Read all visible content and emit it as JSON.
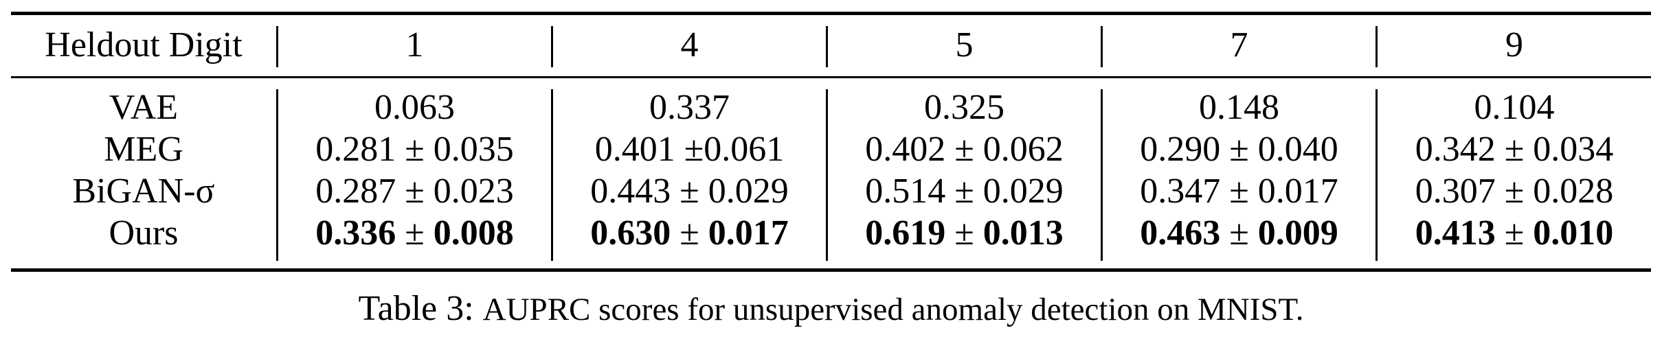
{
  "table": {
    "header": [
      "Heldout Digit",
      "1",
      "4",
      "5",
      "7",
      "9"
    ],
    "rows": [
      {
        "method": "VAE",
        "cells": [
          {
            "mean": "0.063",
            "pm": "",
            "std": "",
            "bold": false
          },
          {
            "mean": "0.337",
            "pm": "",
            "std": "",
            "bold": false
          },
          {
            "mean": "0.325",
            "pm": "",
            "std": "",
            "bold": false
          },
          {
            "mean": "0.148",
            "pm": "",
            "std": "",
            "bold": false
          },
          {
            "mean": "0.104",
            "pm": "",
            "std": "",
            "bold": false
          }
        ]
      },
      {
        "method": "MEG",
        "cells": [
          {
            "mean": "0.281",
            "pm": " ± ",
            "std": "0.035",
            "bold": false
          },
          {
            "mean": "0.401",
            "pm": " ±",
            "std": "0.061",
            "bold": false
          },
          {
            "mean": "0.402",
            "pm": " ± ",
            "std": "0.062",
            "bold": false
          },
          {
            "mean": "0.290",
            "pm": " ± ",
            "std": "0.040",
            "bold": false
          },
          {
            "mean": "0.342",
            "pm": " ± ",
            "std": "0.034",
            "bold": false
          }
        ]
      },
      {
        "method": "BiGAN-σ",
        "cells": [
          {
            "mean": "0.287",
            "pm": " ± ",
            "std": "0.023",
            "bold": false
          },
          {
            "mean": "0.443",
            "pm": " ± ",
            "std": "0.029",
            "bold": false
          },
          {
            "mean": "0.514",
            "pm": " ± ",
            "std": "0.029",
            "bold": false
          },
          {
            "mean": "0.347",
            "pm": " ± ",
            "std": "0.017",
            "bold": false
          },
          {
            "mean": "0.307",
            "pm": " ± ",
            "std": "0.028",
            "bold": false
          }
        ]
      },
      {
        "method": "Ours",
        "cells": [
          {
            "mean": "0.336",
            "pm": " ± ",
            "std": "0.008",
            "bold": true
          },
          {
            "mean": "0.630",
            "pm": " ± ",
            "std": "0.017",
            "bold": true
          },
          {
            "mean": "0.619",
            "pm": " ± ",
            "std": "0.013",
            "bold": true
          },
          {
            "mean": "0.463",
            "pm": " ± ",
            "std": "0.009",
            "bold": true
          },
          {
            "mean": "0.413",
            "pm": " ± ",
            "std": "0.010",
            "bold": true
          }
        ]
      }
    ]
  },
  "caption": {
    "label": "Table 3:",
    "text": "AUPRC scores for unsupervised anomaly detection on MNIST."
  }
}
